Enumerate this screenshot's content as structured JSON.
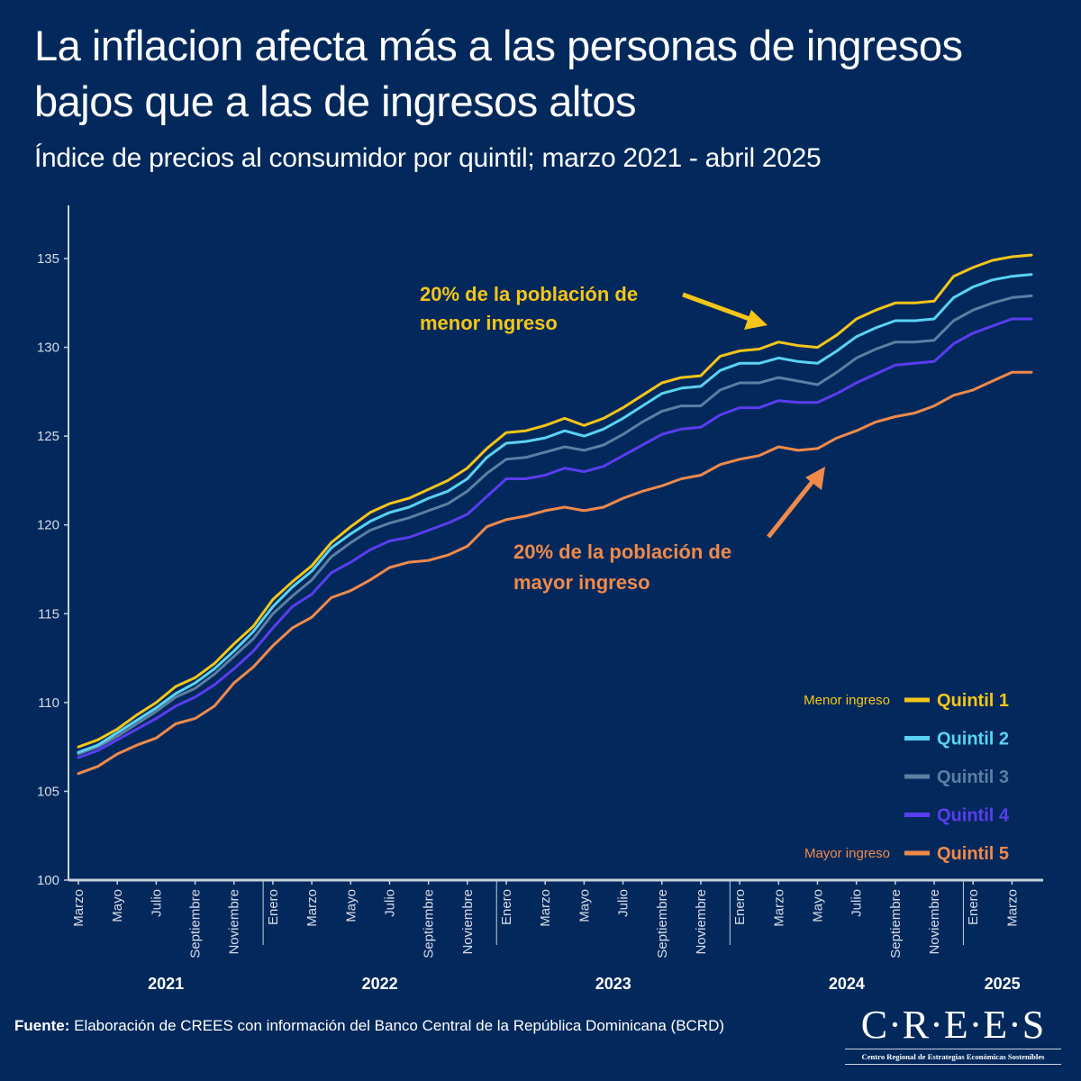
{
  "header": {
    "title": "La inflacion afecta más a las personas de ingresos bajos que a las de ingresos altos",
    "subtitle": "Índice de precios al consumidor por quintil; marzo 2021 - abril 2025"
  },
  "colors": {
    "background": "#03295c",
    "quintil_1": "#f5c518",
    "quintil_2": "#5ad2f4",
    "quintil_3": "#5c7fa3",
    "quintil_4": "#5a3df0",
    "quintil_5": "#f08a4b",
    "axis": "#c8d0dc"
  },
  "chart_data": {
    "type": "line",
    "title": "Índice de precios al consumidor por quintil; marzo 2021 - abril 2025",
    "xlabel": "",
    "ylabel": "",
    "ylim": [
      100,
      137.5
    ],
    "yticks": [
      100,
      105,
      110,
      115,
      120,
      125,
      130,
      135
    ],
    "grid": false,
    "legend_position": "bottom-right",
    "x": [
      "2021-03",
      "2021-04",
      "2021-05",
      "2021-06",
      "2021-07",
      "2021-08",
      "2021-09",
      "2021-10",
      "2021-11",
      "2021-12",
      "2022-01",
      "2022-02",
      "2022-03",
      "2022-04",
      "2022-05",
      "2022-06",
      "2022-07",
      "2022-08",
      "2022-09",
      "2022-10",
      "2022-11",
      "2022-12",
      "2023-01",
      "2023-02",
      "2023-03",
      "2023-04",
      "2023-05",
      "2023-06",
      "2023-07",
      "2023-08",
      "2023-09",
      "2023-10",
      "2023-11",
      "2023-12",
      "2024-01",
      "2024-02",
      "2024-03",
      "2024-04",
      "2024-05",
      "2024-06",
      "2024-07",
      "2024-08",
      "2024-09",
      "2024-10",
      "2024-11",
      "2024-12",
      "2025-01",
      "2025-02",
      "2025-03",
      "2025-04"
    ],
    "x_tick_labels": [
      {
        "index": 0,
        "label": "Marzo"
      },
      {
        "index": 2,
        "label": "Mayo"
      },
      {
        "index": 4,
        "label": "Julio"
      },
      {
        "index": 6,
        "label": "Septiembre"
      },
      {
        "index": 8,
        "label": "Noviembre"
      },
      {
        "index": 10,
        "label": "Enero"
      },
      {
        "index": 12,
        "label": "Marzo"
      },
      {
        "index": 14,
        "label": "Mayo"
      },
      {
        "index": 16,
        "label": "Julio"
      },
      {
        "index": 18,
        "label": "Septiembre"
      },
      {
        "index": 20,
        "label": "Noviembre"
      },
      {
        "index": 22,
        "label": "Enero"
      },
      {
        "index": 24,
        "label": "Marzo"
      },
      {
        "index": 26,
        "label": "Mayo"
      },
      {
        "index": 28,
        "label": "Julio"
      },
      {
        "index": 30,
        "label": "Septiembre"
      },
      {
        "index": 32,
        "label": "Noviembre"
      },
      {
        "index": 34,
        "label": "Enero"
      },
      {
        "index": 36,
        "label": "Marzo"
      },
      {
        "index": 38,
        "label": "Mayo"
      },
      {
        "index": 40,
        "label": "Julio"
      },
      {
        "index": 42,
        "label": "Septiembre"
      },
      {
        "index": 44,
        "label": "Noviembre"
      },
      {
        "index": 46,
        "label": "Enero"
      },
      {
        "index": 48,
        "label": "Marzo"
      }
    ],
    "year_groups": [
      {
        "label": "2021",
        "start": 0,
        "end": 9
      },
      {
        "label": "2022",
        "start": 10,
        "end": 21
      },
      {
        "label": "2023",
        "start": 22,
        "end": 33
      },
      {
        "label": "2024",
        "start": 34,
        "end": 45
      },
      {
        "label": "2025",
        "start": 46,
        "end": 49
      }
    ],
    "series": [
      {
        "name": "Quintil 1",
        "color_key": "quintil_1",
        "values": [
          107.5,
          107.9,
          108.5,
          109.3,
          110.0,
          110.9,
          111.4,
          112.2,
          113.3,
          114.3,
          115.8,
          116.8,
          117.7,
          119.0,
          119.9,
          120.7,
          121.2,
          121.5,
          122.0,
          122.5,
          123.2,
          124.3,
          125.2,
          125.3,
          125.6,
          126.0,
          125.6,
          126.0,
          126.6,
          127.3,
          128.0,
          128.3,
          128.4,
          129.5,
          129.8,
          129.9,
          130.3,
          130.1,
          130.0,
          130.7,
          131.6,
          132.1,
          132.5,
          132.5,
          132.6,
          134.0,
          134.5,
          134.9,
          135.1,
          135.2
        ]
      },
      {
        "name": "Quintil 2",
        "color_key": "quintil_2",
        "values": [
          107.2,
          107.6,
          108.3,
          109.0,
          109.7,
          110.5,
          111.1,
          111.9,
          112.9,
          114.0,
          115.4,
          116.5,
          117.4,
          118.7,
          119.5,
          120.2,
          120.7,
          121.0,
          121.5,
          121.9,
          122.6,
          123.8,
          124.6,
          124.7,
          124.9,
          125.3,
          125.0,
          125.4,
          126.0,
          126.7,
          127.4,
          127.7,
          127.8,
          128.7,
          129.1,
          129.1,
          129.4,
          129.2,
          129.1,
          129.8,
          130.6,
          131.1,
          131.5,
          131.5,
          131.6,
          132.8,
          133.4,
          133.8,
          134.0,
          134.1
        ]
      },
      {
        "name": "Quintil 3",
        "color_key": "quintil_3",
        "values": [
          107.1,
          107.5,
          108.1,
          108.8,
          109.5,
          110.3,
          110.8,
          111.6,
          112.6,
          113.6,
          115.0,
          116.0,
          116.9,
          118.2,
          119.0,
          119.7,
          120.1,
          120.4,
          120.8,
          121.2,
          121.9,
          122.9,
          123.7,
          123.8,
          124.1,
          124.4,
          124.2,
          124.5,
          125.1,
          125.8,
          126.4,
          126.7,
          126.7,
          127.6,
          128.0,
          128.0,
          128.3,
          128.1,
          127.9,
          128.6,
          129.4,
          129.9,
          130.3,
          130.3,
          130.4,
          131.5,
          132.1,
          132.5,
          132.8,
          132.9
        ]
      },
      {
        "name": "Quintil 4",
        "color_key": "quintil_4",
        "values": [
          106.9,
          107.3,
          107.9,
          108.5,
          109.1,
          109.8,
          110.3,
          111.0,
          111.9,
          112.9,
          114.2,
          115.4,
          116.1,
          117.3,
          117.9,
          118.6,
          119.1,
          119.3,
          119.7,
          120.1,
          120.6,
          121.6,
          122.6,
          122.6,
          122.8,
          123.2,
          123.0,
          123.3,
          123.9,
          124.5,
          125.1,
          125.4,
          125.5,
          126.2,
          126.6,
          126.6,
          127.0,
          126.9,
          126.9,
          127.4,
          128.0,
          128.5,
          129.0,
          129.1,
          129.2,
          130.2,
          130.8,
          131.2,
          131.6,
          131.6
        ]
      },
      {
        "name": "Quintil 5",
        "color_key": "quintil_5",
        "values": [
          106.0,
          106.4,
          107.1,
          107.6,
          108.0,
          108.8,
          109.1,
          109.8,
          111.1,
          112.0,
          113.2,
          114.2,
          114.8,
          115.9,
          116.3,
          116.9,
          117.6,
          117.9,
          118.0,
          118.3,
          118.8,
          119.9,
          120.3,
          120.5,
          120.8,
          121.0,
          120.8,
          121.0,
          121.5,
          121.9,
          122.2,
          122.6,
          122.8,
          123.4,
          123.7,
          123.9,
          124.4,
          124.2,
          124.3,
          124.9,
          125.3,
          125.8,
          126.1,
          126.3,
          126.7,
          127.3,
          127.6,
          128.1,
          128.6,
          128.6
        ]
      }
    ]
  },
  "annotations": {
    "low_income": {
      "line1": "20% de la población de",
      "line2": "menor ingreso"
    },
    "high_income": {
      "line1": "20% de la población de",
      "line2": "mayor ingreso"
    }
  },
  "legend": {
    "items": [
      {
        "label": "Quintil 1",
        "side": "Menor ingreso",
        "color_key": "quintil_1"
      },
      {
        "label": "Quintil 2",
        "side": "",
        "color_key": "quintil_2"
      },
      {
        "label": "Quintil 3",
        "side": "",
        "color_key": "quintil_3"
      },
      {
        "label": "Quintil 4",
        "side": "",
        "color_key": "quintil_4"
      },
      {
        "label": "Quintil 5",
        "side": "Mayor ingreso",
        "color_key": "quintil_5"
      }
    ]
  },
  "footer": {
    "source_label": "Fuente:",
    "source_text": " Elaboración de CREES con información del Banco Central de la República Dominicana (BCRD)",
    "logo_main": "C·R·E·E·S",
    "logo_sub": "Centro Regional de Estrategias Económicas Sostenibles"
  }
}
